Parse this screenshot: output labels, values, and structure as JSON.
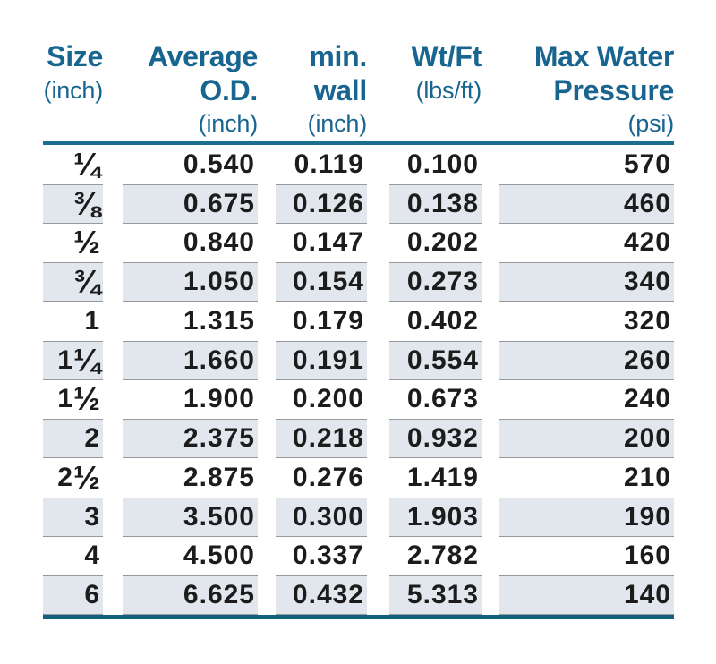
{
  "colors": {
    "header-blue": "#186590",
    "rule-top": "#1b6d92",
    "rule-bottom": "#14607c",
    "shade-bg": "#e1e7ec",
    "shade-border": "#97999c",
    "data-text": "#1c1c1c",
    "page-bg": "#ffffff"
  },
  "table": {
    "columns": [
      {
        "line1": "Size",
        "line2": "(inch)",
        "line3": ""
      },
      {
        "line1": "Average",
        "line2": "O.D.",
        "line3": "(inch)"
      },
      {
        "line1": "min.",
        "line2": "wall",
        "line3": "(inch)"
      },
      {
        "line1": "Wt/Ft",
        "line2": "(lbs/ft)",
        "line3": ""
      },
      {
        "line1": "Max Water",
        "line2": "Pressure",
        "line3": "(psi)"
      }
    ],
    "rows": [
      {
        "shaded": false,
        "cells": [
          "¼",
          "0.540",
          "0.119",
          "0.100",
          "570"
        ]
      },
      {
        "shaded": true,
        "cells": [
          "⅜",
          "0.675",
          "0.126",
          "0.138",
          "460"
        ]
      },
      {
        "shaded": false,
        "cells": [
          "½",
          "0.840",
          "0.147",
          "0.202",
          "420"
        ]
      },
      {
        "shaded": true,
        "cells": [
          "¾",
          "1.050",
          "0.154",
          "0.273",
          "340"
        ]
      },
      {
        "shaded": false,
        "cells": [
          "1",
          "1.315",
          "0.179",
          "0.402",
          "320"
        ]
      },
      {
        "shaded": true,
        "cells": [
          "1 ¼",
          "1.660",
          "0.191",
          "0.554",
          "260"
        ]
      },
      {
        "shaded": false,
        "cells": [
          "1 ½",
          "1.900",
          "0.200",
          "0.673",
          "240"
        ]
      },
      {
        "shaded": true,
        "cells": [
          "2",
          "2.375",
          "0.218",
          "0.932",
          "200"
        ]
      },
      {
        "shaded": false,
        "cells": [
          "2 ½",
          "2.875",
          "0.276",
          "1.419",
          "210"
        ]
      },
      {
        "shaded": true,
        "cells": [
          "3",
          "3.500",
          "0.300",
          "1.903",
          "190"
        ]
      },
      {
        "shaded": false,
        "cells": [
          "4",
          "4.500",
          "0.337",
          "2.782",
          "160"
        ]
      },
      {
        "shaded": true,
        "cells": [
          "6",
          "6.625",
          "0.432",
          "5.313",
          "140"
        ]
      }
    ]
  },
  "chart_data": {
    "type": "table",
    "title": "",
    "column_headers": [
      "Size (inch)",
      "Average O.D. (inch)",
      "min. wall (inch)",
      "Wt/Ft (lbs/ft)",
      "Max Water Pressure (psi)"
    ],
    "rows": [
      [
        "1/4",
        0.54,
        0.119,
        0.1,
        570
      ],
      [
        "3/8",
        0.675,
        0.126,
        0.138,
        460
      ],
      [
        "1/2",
        0.84,
        0.147,
        0.202,
        420
      ],
      [
        "3/4",
        1.05,
        0.154,
        0.273,
        340
      ],
      [
        "1",
        1.315,
        0.179,
        0.402,
        320
      ],
      [
        "1 1/4",
        1.66,
        0.191,
        0.554,
        260
      ],
      [
        "1 1/2",
        1.9,
        0.2,
        0.673,
        240
      ],
      [
        "2",
        2.375,
        0.218,
        0.932,
        200
      ],
      [
        "2 1/2",
        2.875,
        0.276,
        1.419,
        210
      ],
      [
        "3",
        3.5,
        0.3,
        1.903,
        190
      ],
      [
        "4",
        4.5,
        0.337,
        2.782,
        160
      ],
      [
        "6",
        6.625,
        0.432,
        5.313,
        140
      ]
    ]
  }
}
